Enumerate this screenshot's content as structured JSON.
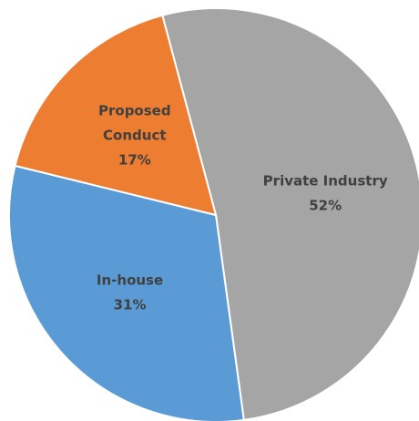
{
  "chart_data": {
    "type": "pie",
    "slices": [
      {
        "label": "Private Industry",
        "value": 52,
        "value_label": "52%",
        "color": "#A5A5A5"
      },
      {
        "label": "In-house",
        "value": 31,
        "value_label": "31%",
        "color": "#5B9BD5"
      },
      {
        "label": "Proposed Conduct",
        "value": 17,
        "value_label": "17%",
        "color": "#ED7D31"
      }
    ],
    "start_angle_deg": -15,
    "direction": "clockwise",
    "legend": "none"
  }
}
